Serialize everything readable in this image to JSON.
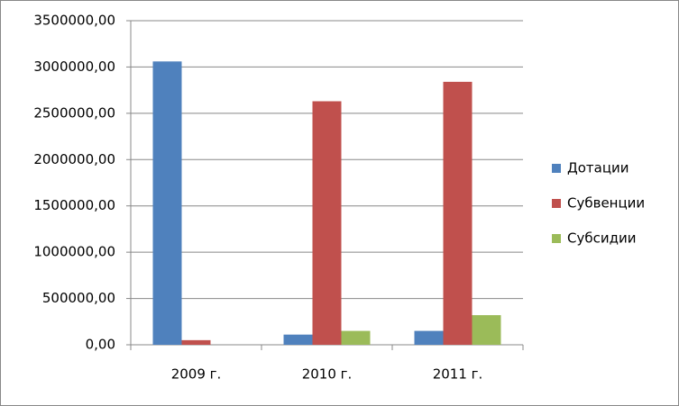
{
  "chart_data": {
    "type": "bar",
    "categories": [
      "2009 г.",
      "2010 г.",
      "2011 г."
    ],
    "series": [
      {
        "name": "Дотации",
        "color": "#4f81bd",
        "values": [
          3060000,
          110000,
          150000
        ]
      },
      {
        "name": "Субвенции",
        "color": "#c0504d",
        "values": [
          50000,
          2630000,
          2840000
        ]
      },
      {
        "name": "Субсидии",
        "color": "#9bbb59",
        "values": [
          0,
          150000,
          320000
        ]
      }
    ],
    "ylim": [
      0,
      3500000
    ],
    "yticks": [
      {
        "value": 0,
        "label": "0,00"
      },
      {
        "value": 500000,
        "label": "500000,00"
      },
      {
        "value": 1000000,
        "label": "1000000,00"
      },
      {
        "value": 1500000,
        "label": "1500000,00"
      },
      {
        "value": 2000000,
        "label": "2000000,00"
      },
      {
        "value": 2500000,
        "label": "2500000,00"
      },
      {
        "value": 3000000,
        "label": "3000000,00"
      },
      {
        "value": 3500000,
        "label": "3500000,00"
      }
    ],
    "grid": true,
    "legend": "right"
  }
}
